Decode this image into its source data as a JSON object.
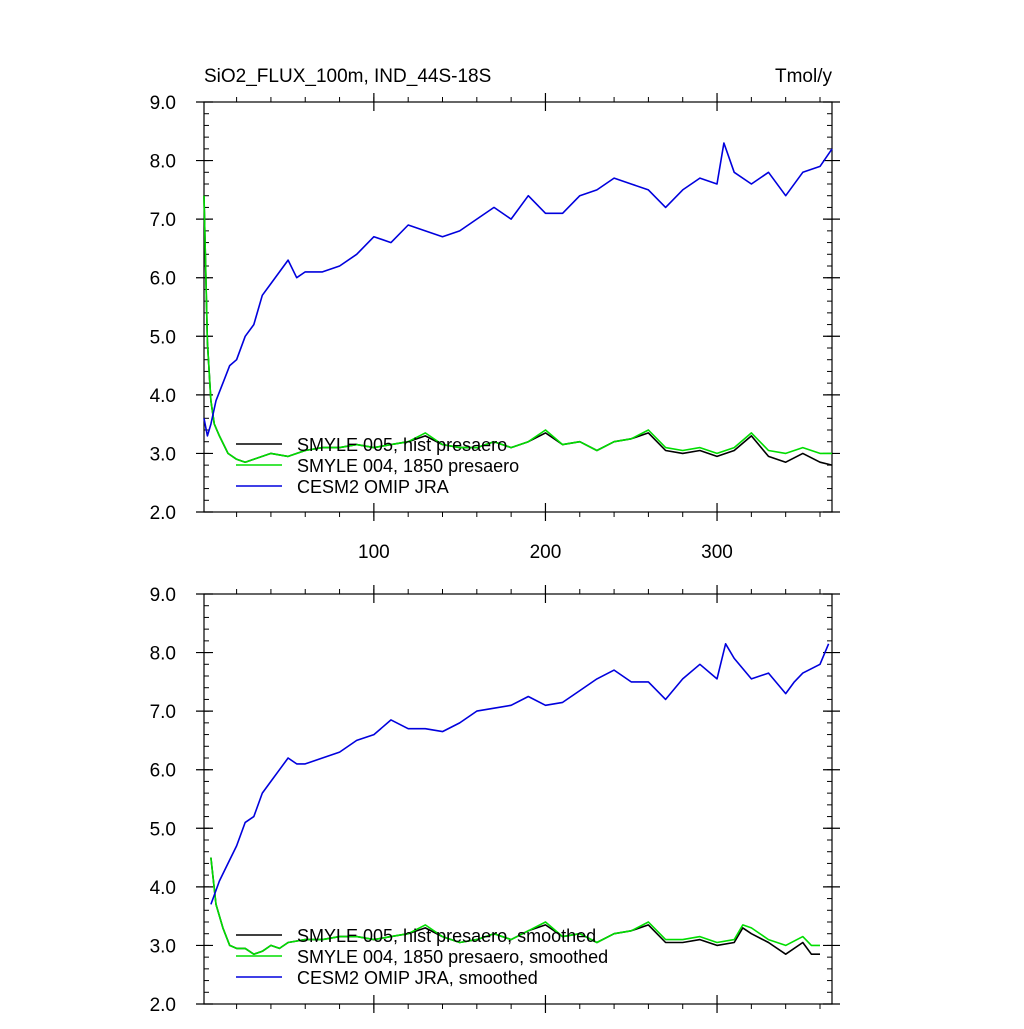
{
  "chart_data": [
    {
      "type": "line",
      "title": "SiO2_FLUX_100m, IND_44S-18S",
      "units": "Tmol/y",
      "xlabel": "",
      "ylabel": "",
      "xlim": [
        1,
        367
      ],
      "ylim": [
        2.0,
        9.0
      ],
      "yticks": [
        "2.0",
        "3.0",
        "4.0",
        "5.0",
        "6.0",
        "7.0",
        "8.0",
        "9.0"
      ],
      "xticks": [
        "100",
        "200",
        "300"
      ],
      "legend_position": "bottom-left",
      "series": [
        {
          "name": "SMYLE 005, hist presaero",
          "color": "#000000",
          "x": [
            1,
            3,
            5,
            7,
            10,
            15,
            20,
            25,
            30,
            40,
            50,
            60,
            70,
            80,
            90,
            100,
            110,
            120,
            130,
            140,
            150,
            160,
            170,
            180,
            190,
            200,
            210,
            220,
            230,
            240,
            250,
            260,
            270,
            280,
            290,
            300,
            310,
            320,
            330,
            340,
            350,
            360,
            367
          ],
          "y": [
            7.4,
            4.9,
            3.9,
            3.5,
            3.3,
            3.0,
            2.9,
            2.85,
            2.9,
            3.0,
            2.95,
            3.05,
            3.1,
            3.1,
            3.15,
            3.1,
            3.15,
            3.2,
            3.3,
            3.15,
            3.1,
            3.1,
            3.2,
            3.1,
            3.2,
            3.35,
            3.15,
            3.2,
            3.05,
            3.2,
            3.25,
            3.35,
            3.05,
            3.0,
            3.05,
            2.95,
            3.05,
            3.3,
            2.95,
            2.85,
            3.0,
            2.85,
            2.8
          ]
        },
        {
          "name": "SMYLE 004, 1850 presaero",
          "color": "#00dd00",
          "x": [
            1,
            3,
            5,
            7,
            10,
            15,
            20,
            25,
            30,
            40,
            50,
            60,
            70,
            80,
            90,
            100,
            110,
            120,
            130,
            140,
            150,
            160,
            170,
            180,
            190,
            200,
            210,
            220,
            230,
            240,
            250,
            260,
            270,
            280,
            290,
            300,
            310,
            320,
            330,
            340,
            350,
            360,
            367
          ],
          "y": [
            7.4,
            4.9,
            3.9,
            3.5,
            3.3,
            3.0,
            2.9,
            2.85,
            2.9,
            3.0,
            2.95,
            3.05,
            3.1,
            3.1,
            3.15,
            3.1,
            3.15,
            3.2,
            3.35,
            3.15,
            3.1,
            3.1,
            3.2,
            3.1,
            3.2,
            3.4,
            3.15,
            3.2,
            3.05,
            3.2,
            3.25,
            3.4,
            3.1,
            3.05,
            3.1,
            3.0,
            3.1,
            3.35,
            3.05,
            3.0,
            3.1,
            3.0,
            3.0
          ]
        },
        {
          "name": "CESM2 OMIP JRA",
          "color": "#0000dd",
          "x": [
            1,
            3,
            5,
            8,
            12,
            16,
            20,
            25,
            30,
            35,
            40,
            45,
            50,
            55,
            60,
            70,
            80,
            90,
            100,
            110,
            120,
            130,
            140,
            150,
            160,
            170,
            180,
            190,
            200,
            210,
            220,
            230,
            240,
            250,
            260,
            270,
            280,
            290,
            300,
            304,
            310,
            320,
            330,
            340,
            350,
            360,
            367
          ],
          "y": [
            3.6,
            3.3,
            3.5,
            3.9,
            4.2,
            4.5,
            4.6,
            5.0,
            5.2,
            5.7,
            5.9,
            6.1,
            6.3,
            6.0,
            6.1,
            6.1,
            6.2,
            6.4,
            6.7,
            6.6,
            6.9,
            6.8,
            6.7,
            6.8,
            7.0,
            7.2,
            7.0,
            7.4,
            7.1,
            7.1,
            7.4,
            7.5,
            7.7,
            7.6,
            7.5,
            7.2,
            7.5,
            7.7,
            7.6,
            8.3,
            7.8,
            7.6,
            7.8,
            7.4,
            7.8,
            7.9,
            8.2
          ]
        }
      ]
    },
    {
      "type": "line",
      "title": "",
      "xlabel": "",
      "ylabel": "",
      "xlim": [
        1,
        367
      ],
      "ylim": [
        2.0,
        9.0
      ],
      "yticks": [
        "2.0",
        "3.0",
        "4.0",
        "5.0",
        "6.0",
        "7.0",
        "8.0",
        "9.0"
      ],
      "legend_position": "bottom-left",
      "series": [
        {
          "name": "SMYLE 005, hist presaero, smoothed",
          "color": "#000000",
          "x": [
            5,
            8,
            12,
            16,
            20,
            25,
            30,
            35,
            40,
            45,
            50,
            60,
            70,
            80,
            90,
            100,
            110,
            120,
            130,
            140,
            150,
            160,
            170,
            180,
            190,
            200,
            210,
            220,
            230,
            240,
            250,
            260,
            270,
            280,
            290,
            300,
            310,
            315,
            320,
            330,
            340,
            350,
            355,
            360
          ],
          "y": [
            4.5,
            3.7,
            3.3,
            3.0,
            2.95,
            2.95,
            2.85,
            2.9,
            3.0,
            2.95,
            3.05,
            3.1,
            3.1,
            3.15,
            3.15,
            3.1,
            3.15,
            3.2,
            3.3,
            3.15,
            3.05,
            3.1,
            3.2,
            3.1,
            3.25,
            3.35,
            3.15,
            3.2,
            3.05,
            3.2,
            3.25,
            3.35,
            3.05,
            3.05,
            3.1,
            3.0,
            3.05,
            3.3,
            3.2,
            3.05,
            2.85,
            3.05,
            2.85,
            2.85
          ]
        },
        {
          "name": "SMYLE 004, 1850 presaero, smoothed",
          "color": "#00dd00",
          "x": [
            5,
            8,
            12,
            16,
            20,
            25,
            30,
            35,
            40,
            45,
            50,
            60,
            70,
            80,
            90,
            100,
            110,
            120,
            130,
            140,
            150,
            160,
            170,
            180,
            190,
            200,
            210,
            220,
            230,
            240,
            250,
            260,
            270,
            280,
            290,
            300,
            310,
            315,
            320,
            330,
            340,
            350,
            355,
            360
          ],
          "y": [
            4.5,
            3.7,
            3.3,
            3.0,
            2.95,
            2.95,
            2.85,
            2.9,
            3.0,
            2.95,
            3.05,
            3.1,
            3.1,
            3.15,
            3.15,
            3.1,
            3.15,
            3.2,
            3.35,
            3.15,
            3.05,
            3.1,
            3.2,
            3.1,
            3.25,
            3.4,
            3.15,
            3.2,
            3.05,
            3.2,
            3.25,
            3.4,
            3.1,
            3.1,
            3.15,
            3.05,
            3.1,
            3.35,
            3.3,
            3.1,
            3.0,
            3.15,
            3.0,
            3.0
          ]
        },
        {
          "name": "CESM2 OMIP JRA, smoothed",
          "color": "#0000dd",
          "x": [
            5,
            10,
            15,
            20,
            25,
            30,
            35,
            40,
            45,
            50,
            55,
            60,
            70,
            80,
            90,
            100,
            110,
            120,
            130,
            140,
            150,
            160,
            170,
            180,
            190,
            200,
            210,
            220,
            230,
            240,
            250,
            260,
            270,
            280,
            290,
            300,
            305,
            310,
            320,
            330,
            340,
            345,
            350,
            360,
            365
          ],
          "y": [
            3.7,
            4.1,
            4.4,
            4.7,
            5.1,
            5.2,
            5.6,
            5.8,
            6.0,
            6.2,
            6.1,
            6.1,
            6.2,
            6.3,
            6.5,
            6.6,
            6.85,
            6.7,
            6.7,
            6.65,
            6.8,
            7.0,
            7.05,
            7.1,
            7.25,
            7.1,
            7.15,
            7.35,
            7.55,
            7.7,
            7.5,
            7.5,
            7.2,
            7.55,
            7.8,
            7.55,
            8.15,
            7.9,
            7.55,
            7.65,
            7.3,
            7.5,
            7.65,
            7.8,
            8.15
          ]
        }
      ]
    }
  ]
}
